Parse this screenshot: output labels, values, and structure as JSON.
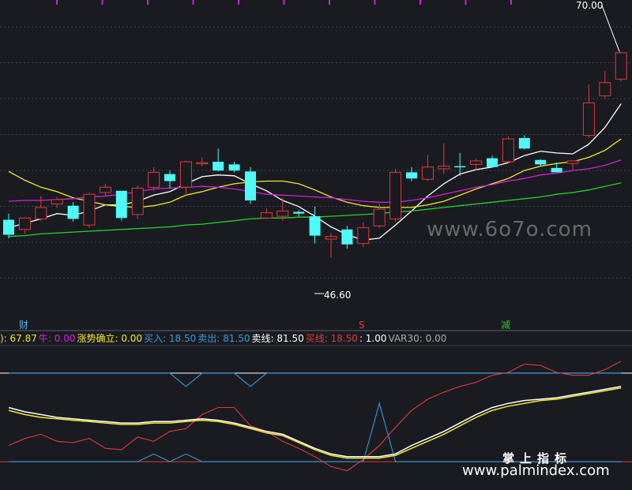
{
  "colors": {
    "background": "#1a1b20",
    "up": "#e0393a",
    "down": "#4dfbf8",
    "ma_white": "#ffffff",
    "ma_yellow": "#f2ea2a",
    "ma_magenta": "#d020d8",
    "ma_green": "#27d027",
    "grid": "#3b4256",
    "top_ticks": "#d020d8"
  },
  "annotations": {
    "high_price": "70.00",
    "low_price": "46.60",
    "signal_cai": "财",
    "signal_s": "S",
    "signal_jian": "减"
  },
  "legend": [
    {
      "text": "): 67.87",
      "color": "#e8e23a"
    },
    {
      "text": "牛: 0.00",
      "color": "#d020d8"
    },
    {
      "text": "涨势确立: 0.00",
      "color": "#f2ea2a"
    },
    {
      "text": "买入: 18.50",
      "color": "#2f9be0"
    },
    {
      "text": "卖出: 81.50",
      "color": "#2f9be0"
    },
    {
      "text": "卖线: 81.50",
      "color": "#ffffff"
    },
    {
      "text": "买线: 18.50",
      "color": "#e0393a"
    },
    {
      "text": ": 1.00",
      "color": "#ffffff"
    },
    {
      "text": "VAR30: 0.00",
      "color": "#aaaaaa"
    }
  ],
  "watermarks": {
    "site_stylized": "www.6o7o.com",
    "brand": "掌上指标",
    "site": "www.palmindex.com"
  },
  "chart_data": [
    {
      "type": "candlestick",
      "title": "",
      "ylim": [
        40,
        75
      ],
      "candles": [
        {
          "o": 50.9,
          "h": 51.6,
          "l": 48.8,
          "c": 49.2
        },
        {
          "o": 49.8,
          "h": 51.2,
          "l": 49.3,
          "c": 51.1
        },
        {
          "o": 51.0,
          "h": 53.6,
          "l": 50.8,
          "c": 52.3
        },
        {
          "o": 52.7,
          "h": 53.5,
          "l": 52.2,
          "c": 53.2
        },
        {
          "o": 52.5,
          "h": 52.9,
          "l": 50.7,
          "c": 51.0
        },
        {
          "o": 50.3,
          "h": 54.0,
          "l": 50.0,
          "c": 53.8
        },
        {
          "o": 54.0,
          "h": 55.0,
          "l": 53.6,
          "c": 54.6
        },
        {
          "o": 54.2,
          "h": 54.2,
          "l": 50.8,
          "c": 51.1
        },
        {
          "o": 51.5,
          "h": 54.8,
          "l": 51.0,
          "c": 54.5
        },
        {
          "o": 54.6,
          "h": 56.9,
          "l": 54.2,
          "c": 56.3
        },
        {
          "o": 56.1,
          "h": 56.5,
          "l": 54.5,
          "c": 55.3
        },
        {
          "o": 54.6,
          "h": 57.6,
          "l": 53.9,
          "c": 57.5
        },
        {
          "o": 57.3,
          "h": 58.0,
          "l": 57.0,
          "c": 57.4
        },
        {
          "o": 57.5,
          "h": 59.0,
          "l": 56.4,
          "c": 56.5
        },
        {
          "o": 57.2,
          "h": 57.5,
          "l": 56.3,
          "c": 56.5
        },
        {
          "o": 56.4,
          "h": 56.9,
          "l": 52.7,
          "c": 53.1
        },
        {
          "o": 51.1,
          "h": 52.2,
          "l": 51.0,
          "c": 51.7
        },
        {
          "o": 51.3,
          "h": 53.4,
          "l": 50.8,
          "c": 51.9
        },
        {
          "o": 51.8,
          "h": 52.0,
          "l": 51.3,
          "c": 51.6
        },
        {
          "o": 51.3,
          "h": 52.4,
          "l": 48.2,
          "c": 49.1
        },
        {
          "o": 48.7,
          "h": 49.4,
          "l": 46.6,
          "c": 49.0
        },
        {
          "o": 49.8,
          "h": 50.2,
          "l": 47.6,
          "c": 48.1
        },
        {
          "o": 48.2,
          "h": 50.6,
          "l": 47.8,
          "c": 50.0
        },
        {
          "o": 50.2,
          "h": 52.7,
          "l": 50.0,
          "c": 52.1
        },
        {
          "o": 51.0,
          "h": 56.7,
          "l": 50.7,
          "c": 56.3
        },
        {
          "o": 56.3,
          "h": 56.9,
          "l": 55.3,
          "c": 55.6
        },
        {
          "o": 55.5,
          "h": 58.3,
          "l": 55.3,
          "c": 56.9
        },
        {
          "o": 56.7,
          "h": 59.6,
          "l": 56.1,
          "c": 57.0
        },
        {
          "o": 57.0,
          "h": 58.5,
          "l": 55.9,
          "c": 56.9
        },
        {
          "o": 57.2,
          "h": 57.9,
          "l": 56.6,
          "c": 57.6
        },
        {
          "o": 57.9,
          "h": 58.2,
          "l": 56.9,
          "c": 56.9
        },
        {
          "o": 57.5,
          "h": 60.4,
          "l": 57.3,
          "c": 60.1
        },
        {
          "o": 60.2,
          "h": 60.5,
          "l": 58.9,
          "c": 59.0
        },
        {
          "o": 57.7,
          "h": 57.8,
          "l": 57.0,
          "c": 57.2
        },
        {
          "o": 56.8,
          "h": 57.4,
          "l": 56.3,
          "c": 56.3
        },
        {
          "o": 57.3,
          "h": 57.6,
          "l": 56.5,
          "c": 57.6
        },
        {
          "o": 60.5,
          "h": 66.3,
          "l": 60.2,
          "c": 64.2
        },
        {
          "o": 65.0,
          "h": 67.8,
          "l": 64.7,
          "c": 66.5
        },
        {
          "o": 66.9,
          "h": 70.0,
          "l": 66.6,
          "c": 69.9
        }
      ],
      "ma": [
        {
          "color": "#ffffff",
          "values": [
            50.0,
            50.5,
            51.0,
            51.6,
            51.4,
            51.9,
            52.6,
            52.6,
            53.0,
            53.7,
            54.1,
            55.0,
            55.8,
            56.0,
            55.9,
            55.0,
            54.2,
            53.1,
            52.4,
            51.3,
            50.1,
            49.2,
            48.6,
            48.8,
            50.3,
            51.9,
            53.6,
            55.0,
            56.1,
            56.6,
            56.9,
            57.4,
            58.2,
            58.7,
            58.5,
            58.4,
            59.5,
            61.4,
            64.1
          ]
        },
        {
          "color": "#f2ea2a",
          "values": [
            56.4,
            55.4,
            54.6,
            54.1,
            53.4,
            53.0,
            52.6,
            52.4,
            52.3,
            52.5,
            52.9,
            53.7,
            54.1,
            54.6,
            55.0,
            55.2,
            55.3,
            55.3,
            55.0,
            54.3,
            53.5,
            52.9,
            52.5,
            52.3,
            52.3,
            52.3,
            52.6,
            53.0,
            53.7,
            54.4,
            55.0,
            55.6,
            56.5,
            57.0,
            57.3,
            57.5,
            58.0,
            58.8,
            60.1
          ]
        },
        {
          "color": "#d020d8",
          "values": [
            53.0,
            53.1,
            53.1,
            53.2,
            53.3,
            53.5,
            53.6,
            53.8,
            54.1,
            54.4,
            54.5,
            54.6,
            54.7,
            54.6,
            54.4,
            54.1,
            53.8,
            53.7,
            53.6,
            53.5,
            53.4,
            53.2,
            53.0,
            52.9,
            52.9,
            53.1,
            53.4,
            53.8,
            54.2,
            54.6,
            54.9,
            55.3,
            55.6,
            56.0,
            56.2,
            56.5,
            56.7,
            57.1,
            57.7
          ]
        },
        {
          "color": "#27d027",
          "values": [
            49.0,
            49.1,
            49.3,
            49.4,
            49.5,
            49.6,
            49.7,
            49.8,
            49.9,
            50.0,
            50.1,
            50.3,
            50.4,
            50.6,
            50.8,
            51.0,
            51.1,
            51.1,
            51.2,
            51.2,
            51.3,
            51.4,
            51.5,
            51.6,
            51.8,
            51.9,
            52.1,
            52.3,
            52.5,
            52.7,
            52.9,
            53.1,
            53.3,
            53.5,
            53.8,
            54.0,
            54.3,
            54.7,
            55.1
          ]
        }
      ]
    },
    {
      "type": "line",
      "title": "",
      "ylim": [
        0,
        100
      ],
      "horizontal_lines": [
        {
          "name": "卖线",
          "value": 81.5,
          "color": "#ffffff"
        },
        {
          "name": "买线",
          "value": 18.5,
          "color": "#e0393a"
        }
      ],
      "series": [
        {
          "name": "卖出",
          "color": "#2f9be0",
          "values": [
            81.5,
            81.5,
            81.5,
            81.5,
            81.5,
            81.5,
            81.5,
            81.5,
            81.5,
            81.5,
            81.5,
            72.0,
            81.5,
            81.5,
            81.5,
            72.0,
            81.5,
            81.5,
            81.5,
            81.5,
            81.5,
            81.5,
            81.5,
            81.5,
            81.5,
            81.5,
            81.5,
            81.5,
            81.5,
            81.5,
            81.5,
            81.5,
            81.5,
            81.5,
            81.5,
            81.5,
            81.5,
            81.5,
            81.5
          ]
        },
        {
          "name": "买入",
          "color": "#2f9be0",
          "values": [
            18.5,
            18.5,
            18.5,
            18.5,
            18.5,
            18.5,
            18.5,
            18.5,
            18.5,
            24.0,
            18.5,
            24.0,
            18.5,
            18.5,
            18.5,
            18.5,
            18.5,
            18.5,
            18.5,
            18.5,
            18.5,
            18.5,
            18.5,
            60.0,
            18.5,
            18.5,
            18.5,
            18.5,
            18.5,
            18.5,
            18.5,
            18.5,
            18.5,
            18.5,
            18.5,
            18.5,
            18.5,
            18.5,
            18.5
          ]
        },
        {
          "name": "",
          "color": "#e0393a",
          "values": [
            30.0,
            35.0,
            38.0,
            33.0,
            32.0,
            35.0,
            28.0,
            27.0,
            36.0,
            33.0,
            40.0,
            42.0,
            52.0,
            57.0,
            57.0,
            44.0,
            40.0,
            33.0,
            28.0,
            22.0,
            15.0,
            12.0,
            20.0,
            30.0,
            43.0,
            55.0,
            63.0,
            68.0,
            72.0,
            75.0,
            80.0,
            82.0,
            88.0,
            87.0,
            82.0,
            80.0,
            80.0,
            84.0,
            90.0
          ]
        },
        {
          "name": "",
          "color": "#ffffff",
          "values": [
            57.0,
            54.0,
            52.0,
            50.0,
            49.0,
            48.0,
            47.0,
            46.0,
            46.0,
            47.0,
            47.0,
            48.0,
            49.0,
            48.0,
            46.0,
            43.0,
            40.0,
            38.0,
            33.0,
            28.0,
            24.0,
            22.0,
            22.0,
            22.0,
            24.0,
            30.0,
            35.0,
            40.0,
            46.0,
            52.0,
            57.0,
            60.0,
            62.0,
            63.0,
            64.0,
            66.0,
            68.0,
            70.0,
            72.0
          ]
        },
        {
          "name": "",
          "color": "#f2ea2a",
          "values": [
            55.0,
            52.0,
            50.0,
            49.0,
            48.0,
            47.0,
            46.0,
            45.0,
            45.0,
            46.0,
            46.0,
            47.0,
            48.0,
            47.0,
            45.0,
            42.0,
            39.0,
            37.0,
            32.0,
            27.0,
            23.0,
            21.0,
            21.0,
            21.0,
            23.0,
            28.0,
            33.0,
            38.0,
            44.0,
            50.0,
            55.0,
            58.0,
            60.0,
            62.0,
            63.0,
            65.0,
            67.0,
            69.0,
            71.0
          ]
        }
      ]
    }
  ]
}
